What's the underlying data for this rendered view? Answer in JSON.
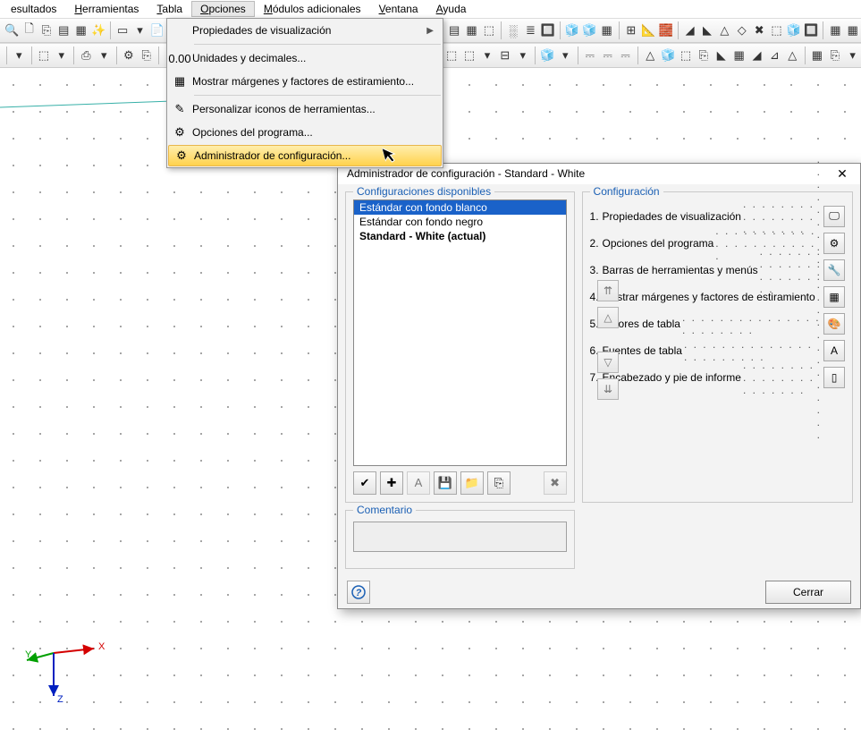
{
  "menubar": {
    "items": [
      {
        "label": "esultados",
        "pre": "",
        "u": ""
      },
      {
        "label": "erramientas",
        "pre": "",
        "u": "H"
      },
      {
        "label": "abla",
        "pre": "",
        "u": "T"
      },
      {
        "label": "pciones",
        "pre": "",
        "u": "O"
      },
      {
        "label": "ódulos adicionales",
        "pre": "",
        "u": "M"
      },
      {
        "label": "entana",
        "pre": "",
        "u": "V"
      },
      {
        "label": "yuda",
        "pre": "",
        "u": "A"
      }
    ],
    "open_index": 3
  },
  "dropdown": {
    "items": [
      {
        "label": "Propiedades de visualización",
        "has_sub": true
      },
      {
        "sep": true
      },
      {
        "label": "Unidades y decimales...",
        "icon": "0.00"
      },
      {
        "label": "Mostrar márgenes y factores de estiramiento...",
        "icon": "▦"
      },
      {
        "sep": true
      },
      {
        "label": "Personalizar iconos de herramientas...",
        "icon": "✎"
      },
      {
        "label": "Opciones del programa...",
        "icon": "⚙"
      },
      {
        "label": "Administrador de configuración...",
        "icon": "⚙",
        "highlight": true
      }
    ]
  },
  "dialog": {
    "title": "Administrador de configuración - Standard - White",
    "left_legend": "Configuraciones disponibles",
    "right_legend": "Configuración",
    "comment_legend": "Comentario",
    "list": [
      {
        "text": "Estándar con fondo blanco",
        "sel": true
      },
      {
        "text": "Estándar con fondo negro"
      },
      {
        "text": "Standard - White (actual)",
        "bold": true
      }
    ],
    "config_items": [
      {
        "n": "1.",
        "label": "Propiedades de visualización",
        "icon": "🖵"
      },
      {
        "n": "2.",
        "label": "Opciones del programa",
        "icon": "⚙"
      },
      {
        "n": "3.",
        "label": "Barras de herramientas y menús",
        "icon": "🔧"
      },
      {
        "n": "4.",
        "label": "Mostrar márgenes y factores de estiramiento",
        "icon": "▦"
      },
      {
        "n": "5.",
        "label": "Colores de tabla",
        "icon": "🎨"
      },
      {
        "n": "6.",
        "label": "Fuentes de tabla",
        "icon": "A"
      },
      {
        "n": "7.",
        "label": "Encabezado y pie de informe",
        "icon": "▯"
      }
    ],
    "toolbar_icons": [
      "✔",
      "✚",
      "A",
      "💾",
      "📁",
      "⎘"
    ],
    "toolbar_delete": "✖",
    "updown": [
      "⇈",
      "△",
      "▽",
      "⇊"
    ],
    "help": "?",
    "close": "Cerrar"
  },
  "toolbars": {
    "row1": [
      "🔍",
      "🗋",
      "⎘",
      "▤",
      "▦",
      "✨",
      "│",
      "▭",
      "▾",
      "📄",
      "▾",
      "☰",
      "▾",
      "│"
    ],
    "row1_right": [
      "│",
      "▤",
      "▦",
      "⬚",
      "│",
      "░",
      "≣",
      "🔲",
      "│",
      "🧊",
      "🧊",
      "▦",
      "│",
      "⊞",
      "📐",
      "🧱",
      "│",
      "◢",
      "◣",
      "△",
      "◇",
      "✖",
      "⬚",
      "🧊",
      "🔲",
      "│",
      "▦",
      "▦"
    ],
    "row2": [
      "│",
      "▾",
      "│",
      "⬚",
      "▾",
      "│",
      "⎙",
      "▾",
      "│",
      "⚙",
      "⎘",
      "│",
      "⚲"
    ],
    "row2_right": [
      "│",
      "▤",
      "▾",
      "⬚",
      "⬚",
      "▾",
      "⊟",
      "▾",
      "│",
      "🧊",
      "▾",
      "│",
      "⎓",
      "⎓",
      "⎓",
      "│",
      "△",
      "🧊",
      "⬚",
      "⎘",
      "◣",
      "▦",
      "◢",
      "⊿",
      "△",
      "│",
      "▦",
      "⎘",
      "▾"
    ]
  },
  "axis": {
    "x": "X",
    "y": "Y",
    "z": "Z"
  }
}
